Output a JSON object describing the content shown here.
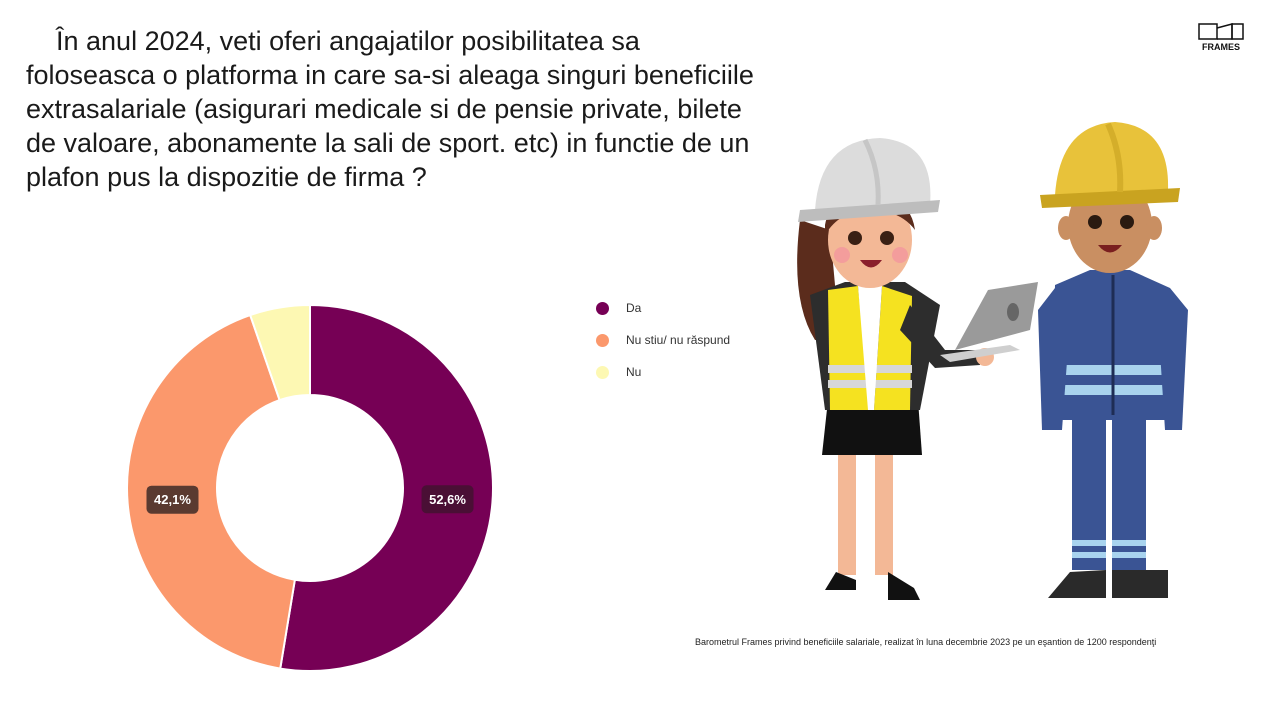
{
  "question": "În anul 2024, veti oferi angajatilor posibilitatea sa foloseasca o platforma in care sa-si aleaga singuri beneficiile extrasalariale (asigurari medicale si de pensie private, bilete de valoare, abonamente la sali de sport. etc) in functie de un plafon pus la dispozitie de firma ?",
  "logo": {
    "text": "FRAMES"
  },
  "source": "Barometrul Frames privind beneficiile salariale, realizat în luna decembrie 2023 pe un eşantion de 1200 respondenţi",
  "chart_data": {
    "type": "pie",
    "donut": true,
    "categories": [
      "Da",
      "Nu stiu/ nu răspund",
      "Nu"
    ],
    "values": [
      52.6,
      42.1,
      5.3
    ],
    "colors": [
      "#760055",
      "#fb986c",
      "#fdf8b3"
    ],
    "data_labels": [
      "52,6%",
      "42,1%",
      ""
    ],
    "label_box_colors": [
      "#4a0f35",
      "#5a3a30",
      ""
    ],
    "legend_position": "right"
  },
  "colors": {
    "accent_da": "#760055",
    "accent_nu_stiu": "#fb986c",
    "accent_nu": "#fdf8b3"
  }
}
